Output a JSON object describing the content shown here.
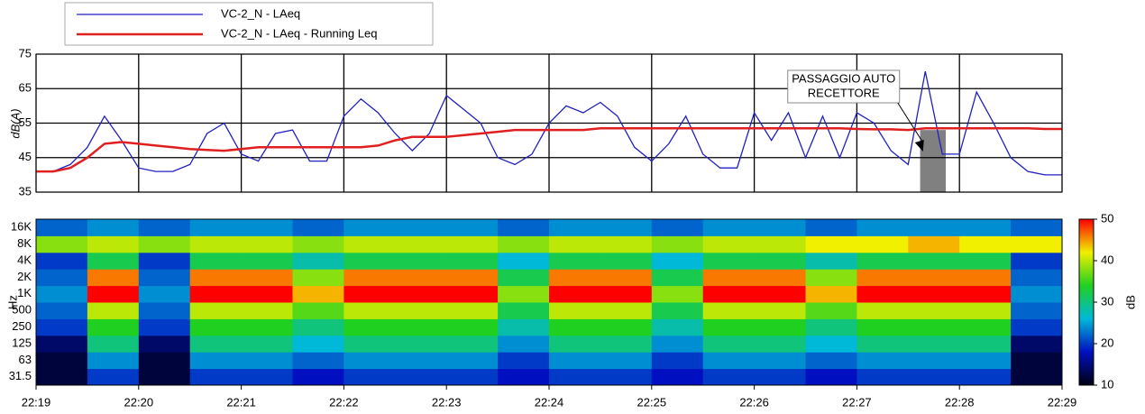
{
  "chart_data": [
    {
      "type": "line",
      "y_label": "dB(A)",
      "xlim": [
        "22:19",
        "22:29"
      ],
      "xticks": [
        "22:19",
        "22:20",
        "22:21",
        "22:22",
        "22:23",
        "22:24",
        "22:25",
        "22:26",
        "22:27",
        "22:28",
        "22:29"
      ],
      "ylim": [
        35,
        75
      ],
      "yticks": [
        35,
        45,
        55,
        65,
        75
      ],
      "grid": true,
      "x": [
        "22:19:00",
        "22:19:10",
        "22:19:20",
        "22:19:30",
        "22:19:40",
        "22:19:50",
        "22:20:00",
        "22:20:10",
        "22:20:20",
        "22:20:30",
        "22:20:40",
        "22:20:50",
        "22:21:00",
        "22:21:10",
        "22:21:20",
        "22:21:30",
        "22:21:40",
        "22:21:50",
        "22:22:00",
        "22:22:10",
        "22:22:20",
        "22:22:30",
        "22:22:40",
        "22:22:50",
        "22:23:00",
        "22:23:10",
        "22:23:20",
        "22:23:30",
        "22:23:40",
        "22:23:50",
        "22:24:00",
        "22:24:10",
        "22:24:20",
        "22:24:30",
        "22:24:40",
        "22:24:50",
        "22:25:00",
        "22:25:10",
        "22:25:20",
        "22:25:30",
        "22:25:40",
        "22:25:50",
        "22:26:00",
        "22:26:10",
        "22:26:20",
        "22:26:30",
        "22:26:40",
        "22:26:50",
        "22:27:00",
        "22:27:10",
        "22:27:20",
        "22:27:30",
        "22:27:40",
        "22:27:50",
        "22:28:00",
        "22:28:10",
        "22:28:20",
        "22:28:30",
        "22:28:40",
        "22:28:50",
        "22:29:00"
      ],
      "series": [
        {
          "name": "VC-2_N - LAeq",
          "color": "#2020c0",
          "width": 1.3,
          "values": [
            41,
            41,
            43,
            48,
            57,
            50,
            42,
            41,
            41,
            43,
            52,
            55,
            46,
            44,
            52,
            53,
            44,
            44,
            57,
            62,
            58,
            52,
            47,
            52,
            63,
            59,
            55,
            45,
            43,
            46,
            55,
            60,
            58,
            61,
            57,
            48,
            44,
            49,
            57,
            46,
            42,
            42,
            58,
            50,
            58,
            45,
            57,
            45,
            58,
            55,
            47,
            43,
            70,
            46,
            46,
            64,
            55,
            45,
            41,
            40,
            40
          ]
        },
        {
          "name": "VC-2_N - LAeq - Running Leq",
          "color": "#e02020",
          "width": 2.5,
          "values": [
            41,
            41,
            42,
            45,
            49,
            49.5,
            49,
            48.5,
            48,
            47.5,
            47.2,
            47,
            47.5,
            48,
            48,
            48,
            48,
            48,
            48,
            48,
            48.5,
            50,
            51,
            51,
            51,
            51.5,
            52,
            52.5,
            53,
            53,
            53,
            53,
            53,
            53.5,
            53.5,
            53.5,
            53.5,
            53.5,
            53.5,
            53.5,
            53.5,
            53.5,
            53.5,
            53.5,
            53.5,
            53.5,
            53.5,
            53.5,
            53.3,
            53.2,
            53.2,
            53,
            53.5,
            53.5,
            53.5,
            53.5,
            53.5,
            53.5,
            53.5,
            53.3,
            53.3
          ]
        }
      ],
      "highlight": {
        "x0": "22:27:37",
        "x1": "22:27:52",
        "top": 53,
        "color": "#808080"
      },
      "annotation": {
        "lines": [
          "PASSAGGIO AUTO",
          "RECETTORE"
        ],
        "x": "22:27:45"
      }
    },
    {
      "type": "heatmap",
      "y_label": "Hz",
      "xlim": [
        "22:19",
        "22:29"
      ],
      "xticks": [
        "22:19",
        "22:20",
        "22:21",
        "22:22",
        "22:23",
        "22:24",
        "22:25",
        "22:26",
        "22:27",
        "22:28",
        "22:29"
      ],
      "x": [
        "22:19:00",
        "22:19:30",
        "22:20:00",
        "22:20:30",
        "22:21:00",
        "22:21:30",
        "22:22:00",
        "22:22:30",
        "22:23:00",
        "22:23:30",
        "22:24:00",
        "22:24:30",
        "22:25:00",
        "22:25:30",
        "22:26:00",
        "22:26:30",
        "22:27:00",
        "22:27:30",
        "22:28:00",
        "22:28:30"
      ],
      "categories": [
        "31.5",
        "63",
        "125",
        "250",
        "500",
        "1K",
        "2K",
        "4K",
        "8K",
        "16K"
      ],
      "values": [
        [
          12,
          20,
          12,
          20,
          20,
          18,
          20,
          20,
          20,
          18,
          20,
          20,
          18,
          20,
          20,
          18,
          20,
          20,
          20,
          12
        ],
        [
          12,
          24,
          12,
          24,
          24,
          22,
          24,
          24,
          24,
          20,
          24,
          24,
          20,
          24,
          24,
          22,
          24,
          24,
          24,
          12
        ],
        [
          14,
          30,
          14,
          30,
          30,
          26,
          30,
          30,
          30,
          24,
          30,
          30,
          24,
          30,
          30,
          26,
          30,
          30,
          30,
          14
        ],
        [
          20,
          34,
          20,
          34,
          34,
          30,
          34,
          34,
          34,
          28,
          34,
          34,
          28,
          34,
          34,
          30,
          34,
          34,
          34,
          20
        ],
        [
          22,
          40,
          22,
          40,
          40,
          36,
          40,
          40,
          40,
          32,
          40,
          40,
          32,
          40,
          40,
          36,
          40,
          40,
          40,
          22
        ],
        [
          24,
          50,
          24,
          50,
          50,
          44,
          50,
          50,
          50,
          38,
          50,
          50,
          38,
          50,
          50,
          44,
          50,
          50,
          50,
          24
        ],
        [
          22,
          46,
          22,
          46,
          46,
          38,
          46,
          46,
          46,
          32,
          46,
          46,
          32,
          46,
          46,
          38,
          46,
          46,
          46,
          22
        ],
        [
          20,
          32,
          20,
          32,
          32,
          28,
          32,
          32,
          32,
          26,
          32,
          32,
          26,
          32,
          32,
          28,
          32,
          32,
          32,
          20
        ],
        [
          38,
          40,
          38,
          40,
          40,
          38,
          40,
          40,
          40,
          38,
          40,
          40,
          38,
          40,
          40,
          42,
          42,
          44,
          42,
          42
        ],
        [
          22,
          24,
          22,
          24,
          24,
          22,
          24,
          24,
          24,
          22,
          24,
          24,
          22,
          24,
          24,
          22,
          24,
          24,
          24,
          22
        ]
      ],
      "colorbar_label": "dB",
      "clim": [
        10,
        50
      ],
      "cticks": [
        10,
        20,
        30,
        40,
        50
      ],
      "colorscale": [
        "#000010",
        "#0010c0",
        "#00b8d8",
        "#20d020",
        "#f0f000",
        "#ff0000"
      ]
    }
  ]
}
